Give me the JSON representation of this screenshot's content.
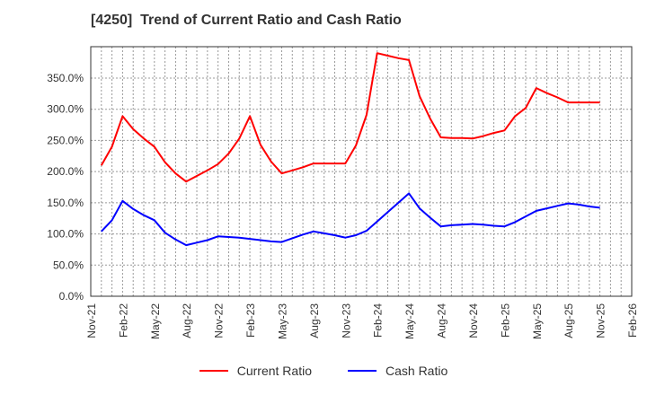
{
  "chart_data": {
    "type": "line",
    "title": "[4250]  Trend of Current Ratio and Cash Ratio",
    "xlabel": "",
    "ylabel": "",
    "ylim": [
      0,
      400
    ],
    "yticks": [
      "0.0%",
      "50.0%",
      "100.0%",
      "150.0%",
      "200.0%",
      "250.0%",
      "300.0%",
      "350.0%"
    ],
    "ytick_values": [
      0,
      50,
      100,
      150,
      200,
      250,
      300,
      350
    ],
    "xticks": [
      "Nov-21",
      "Feb-22",
      "May-22",
      "Aug-22",
      "Nov-22",
      "Feb-23",
      "May-23",
      "Aug-23",
      "Nov-23",
      "Feb-24",
      "May-24",
      "Aug-24",
      "Nov-24",
      "Feb-25",
      "May-25",
      "Aug-25",
      "Nov-25",
      "Feb-26"
    ],
    "grid": true,
    "legend_position": "bottom",
    "x": [
      "Dec-21",
      "Jan-22",
      "Feb-22",
      "Mar-22",
      "Apr-22",
      "May-22",
      "Jun-22",
      "Jul-22",
      "Aug-22",
      "Sep-22",
      "Oct-22",
      "Nov-22",
      "Dec-22",
      "Jan-23",
      "Feb-23",
      "Mar-23",
      "Apr-23",
      "May-23",
      "Jun-23",
      "Jul-23",
      "Aug-23",
      "Sep-23",
      "Oct-23",
      "Nov-23",
      "Dec-23",
      "Jan-24",
      "Feb-24",
      "Mar-24",
      "Apr-24",
      "May-24",
      "Jun-24",
      "Jul-24",
      "Aug-24",
      "Sep-24",
      "Oct-24",
      "Nov-24",
      "Dec-24",
      "Jan-25",
      "Feb-25",
      "Mar-25",
      "Apr-25",
      "May-25",
      "Jun-25",
      "Jul-25",
      "Aug-25",
      "Sep-25",
      "Oct-25",
      "Nov-25"
    ],
    "series": [
      {
        "name": "Current Ratio",
        "color": "#ff0000",
        "values": [
          210,
          240,
          289,
          268,
          253,
          240,
          215,
          197,
          184,
          193,
          202,
          212,
          229,
          253,
          289,
          243,
          216,
          197,
          202,
          207,
          213,
          213,
          213,
          213,
          242,
          291,
          390,
          386,
          382,
          379,
          321,
          285,
          255,
          254,
          254,
          253,
          257,
          262,
          266,
          289,
          302,
          334,
          326,
          319,
          311,
          311,
          311,
          311
        ]
      },
      {
        "name": "Cash Ratio",
        "color": "#0000ff",
        "values": [
          104,
          122,
          153,
          140,
          130,
          122,
          102,
          91,
          82,
          86,
          90,
          96,
          95,
          94,
          92,
          90,
          88,
          87,
          93,
          99,
          104,
          101,
          98,
          94,
          98,
          105,
          120,
          135,
          150,
          165,
          141,
          126,
          112,
          114,
          115,
          116,
          115,
          113,
          112,
          119,
          128,
          137,
          141,
          145,
          149,
          147,
          144,
          142
        ]
      }
    ]
  },
  "legend": {
    "items": [
      {
        "label": "Current Ratio",
        "color": "#ff0000"
      },
      {
        "label": "Cash Ratio",
        "color": "#0000ff"
      }
    ]
  }
}
